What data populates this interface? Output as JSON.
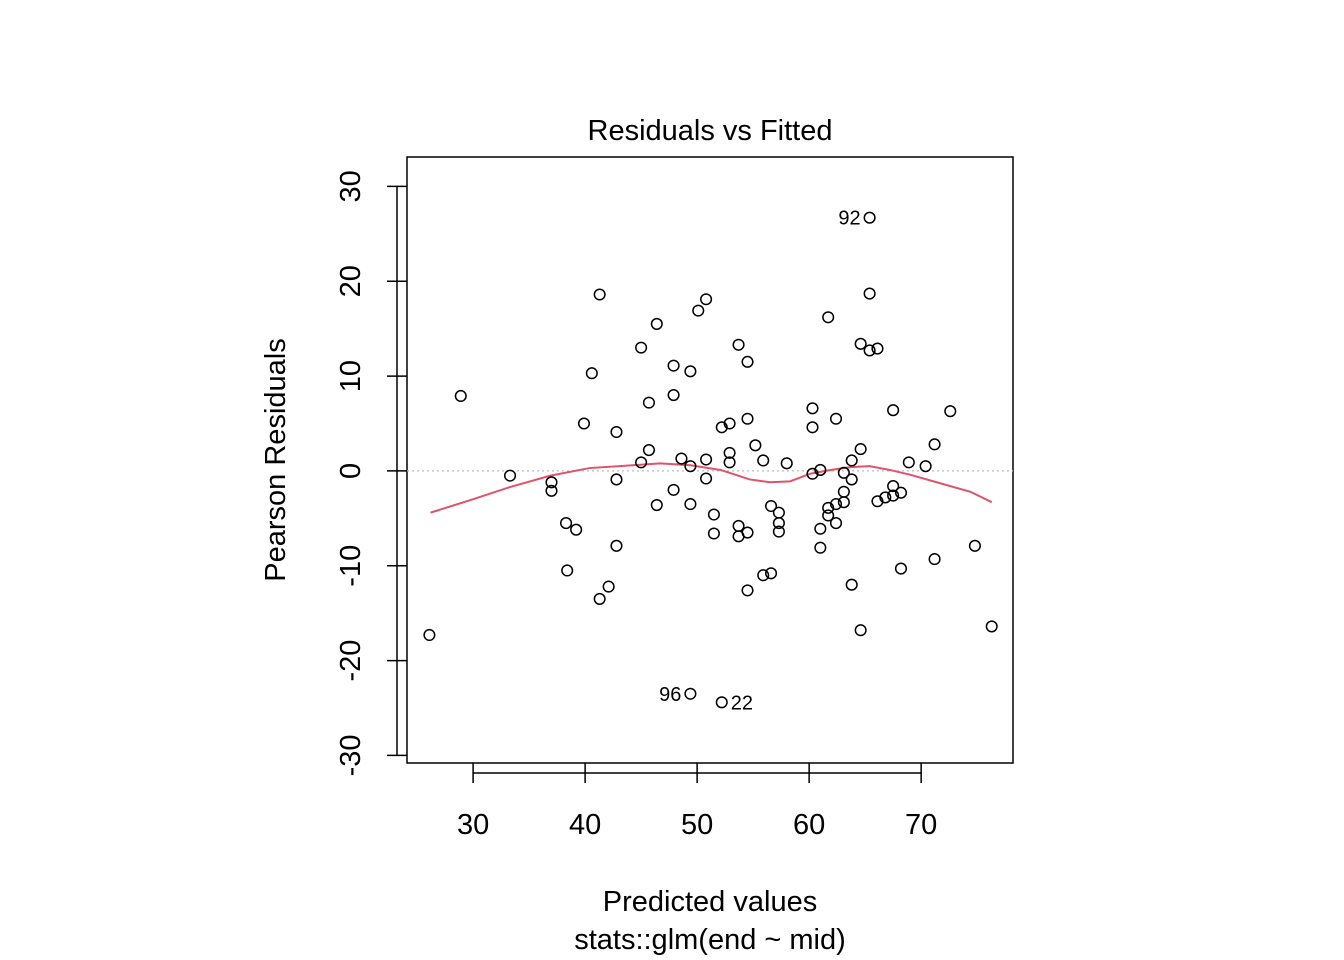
{
  "chart_data": {
    "type": "scatter",
    "title": "Residuals vs Fitted",
    "xlabel": "Predicted values",
    "subtitle": "stats::glm(end ~ mid)",
    "ylabel": "Pearson Residuals",
    "xlim": [
      24.1,
      78.2
    ],
    "ylim": [
      -30.8,
      33.1
    ],
    "x_ticks": [
      30,
      40,
      50,
      60,
      70
    ],
    "y_ticks": [
      -30,
      -20,
      -10,
      0,
      10,
      20,
      30
    ],
    "grid": false,
    "reference_line": 0,
    "colors": {
      "points": "#000000",
      "smooth": "#DF536B",
      "reference": "#BEBEBE"
    },
    "points": [
      [
        26.1,
        -17.3
      ],
      [
        28.9,
        7.9
      ],
      [
        33.3,
        -0.5
      ],
      [
        37.0,
        -1.2
      ],
      [
        37.0,
        -2.1
      ],
      [
        38.3,
        -5.5
      ],
      [
        39.2,
        -6.2
      ],
      [
        38.4,
        -10.5
      ],
      [
        39.9,
        5.0
      ],
      [
        40.6,
        10.3
      ],
      [
        41.3,
        18.6
      ],
      [
        41.3,
        -13.5
      ],
      [
        42.1,
        -12.2
      ],
      [
        42.8,
        4.1
      ],
      [
        42.8,
        -0.9
      ],
      [
        42.8,
        -7.9
      ],
      [
        45.0,
        13.0
      ],
      [
        45.0,
        0.9
      ],
      [
        45.7,
        7.2
      ],
      [
        45.7,
        2.2
      ],
      [
        46.4,
        15.5
      ],
      [
        46.4,
        -3.6
      ],
      [
        47.9,
        11.1
      ],
      [
        47.9,
        8.0
      ],
      [
        47.9,
        -2.0
      ],
      [
        48.6,
        1.3
      ],
      [
        49.4,
        10.5
      ],
      [
        49.4,
        0.5
      ],
      [
        49.4,
        -3.5
      ],
      [
        49.4,
        -23.5
      ],
      [
        50.1,
        16.9
      ],
      [
        50.8,
        18.1
      ],
      [
        50.8,
        1.2
      ],
      [
        50.8,
        -0.8
      ],
      [
        51.5,
        -4.6
      ],
      [
        51.5,
        -6.6
      ],
      [
        52.2,
        4.6
      ],
      [
        52.2,
        -24.4
      ],
      [
        52.9,
        5.0
      ],
      [
        52.9,
        1.9
      ],
      [
        52.9,
        0.9
      ],
      [
        53.7,
        13.3
      ],
      [
        53.7,
        -5.8
      ],
      [
        53.7,
        -6.9
      ],
      [
        54.5,
        11.5
      ],
      [
        54.5,
        5.5
      ],
      [
        54.5,
        -6.5
      ],
      [
        54.5,
        -12.6
      ],
      [
        55.2,
        2.7
      ],
      [
        55.9,
        1.1
      ],
      [
        55.9,
        -11.0
      ],
      [
        56.6,
        -3.7
      ],
      [
        56.6,
        -10.8
      ],
      [
        57.3,
        -4.4
      ],
      [
        57.3,
        -5.5
      ],
      [
        57.3,
        -6.4
      ],
      [
        58.0,
        0.8
      ],
      [
        60.3,
        6.6
      ],
      [
        60.3,
        4.6
      ],
      [
        60.3,
        -0.3
      ],
      [
        61.0,
        0.1
      ],
      [
        61.0,
        -6.1
      ],
      [
        61.0,
        -8.1
      ],
      [
        61.7,
        16.2
      ],
      [
        61.7,
        -3.9
      ],
      [
        61.7,
        -4.7
      ],
      [
        62.4,
        5.5
      ],
      [
        62.4,
        -3.5
      ],
      [
        62.4,
        -5.5
      ],
      [
        63.1,
        -0.2
      ],
      [
        63.1,
        -2.2
      ],
      [
        63.1,
        -3.3
      ],
      [
        63.8,
        1.1
      ],
      [
        63.8,
        -0.9
      ],
      [
        63.8,
        -12.0
      ],
      [
        64.6,
        13.4
      ],
      [
        64.6,
        2.3
      ],
      [
        64.6,
        -16.8
      ],
      [
        65.4,
        26.7
      ],
      [
        65.4,
        18.7
      ],
      [
        65.4,
        12.7
      ],
      [
        66.1,
        12.9
      ],
      [
        66.1,
        -3.2
      ],
      [
        66.8,
        -2.8
      ],
      [
        67.5,
        6.4
      ],
      [
        67.5,
        -1.6
      ],
      [
        67.5,
        -2.6
      ],
      [
        68.2,
        -2.3
      ],
      [
        68.2,
        -10.3
      ],
      [
        68.9,
        0.9
      ],
      [
        70.4,
        0.5
      ],
      [
        71.2,
        2.8
      ],
      [
        71.2,
        -9.3
      ],
      [
        72.6,
        6.3
      ],
      [
        74.8,
        -7.9
      ],
      [
        76.3,
        -16.4
      ]
    ],
    "smooth": [
      [
        26.2,
        -4.4
      ],
      [
        29.7,
        -3.1
      ],
      [
        33.3,
        -1.7
      ],
      [
        36.9,
        -0.5
      ],
      [
        40.4,
        0.3
      ],
      [
        43.1,
        0.5
      ],
      [
        46.7,
        0.8
      ],
      [
        49.4,
        0.6
      ],
      [
        52.1,
        0.1
      ],
      [
        54.7,
        -0.9
      ],
      [
        56.5,
        -1.2
      ],
      [
        58.3,
        -1.1
      ],
      [
        60.1,
        -0.3
      ],
      [
        61.9,
        0.1
      ],
      [
        63.7,
        0.4
      ],
      [
        65.4,
        0.5
      ],
      [
        67.2,
        0.1
      ],
      [
        69.0,
        -0.4
      ],
      [
        71.7,
        -1.3
      ],
      [
        74.4,
        -2.2
      ],
      [
        76.3,
        -3.3
      ]
    ],
    "point_labels": [
      {
        "label": "92",
        "x": 65.4,
        "y": 26.7,
        "dx": -24,
        "dy": 0
      },
      {
        "label": "22",
        "x": 52.2,
        "y": -24.4,
        "dx": -12,
        "dy": 0
      },
      {
        "label": "96",
        "x": 49.4,
        "y": -23.5,
        "dx": 10,
        "dy": 17
      }
    ]
  }
}
